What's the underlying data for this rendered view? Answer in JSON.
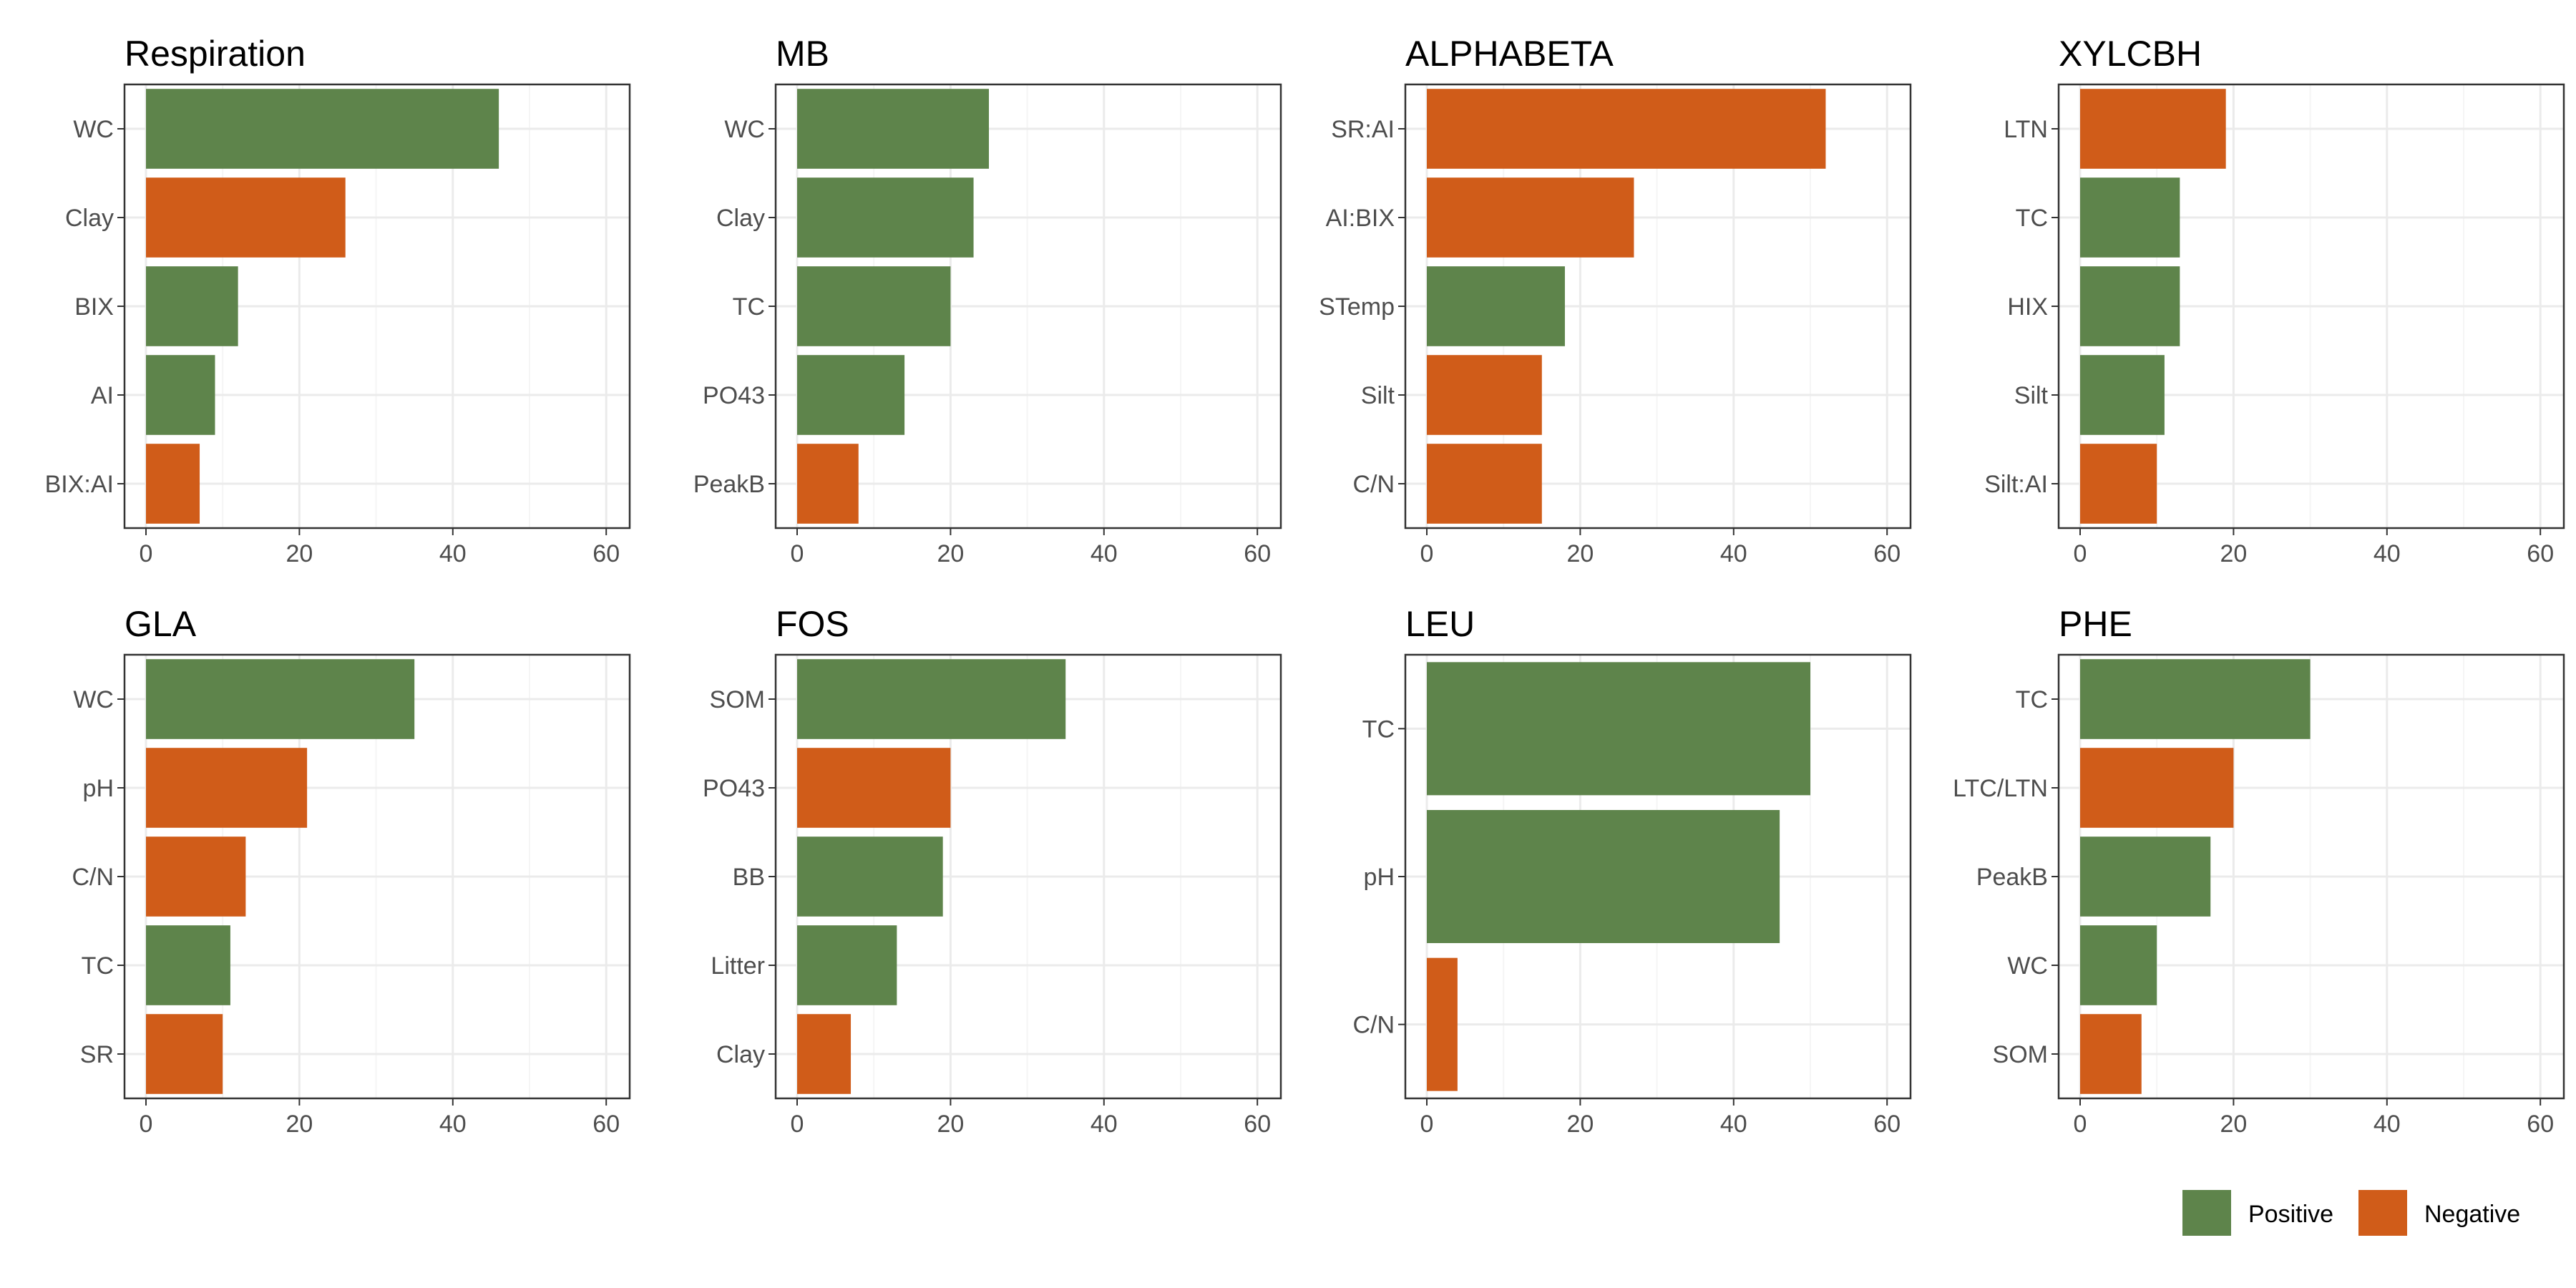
{
  "colors": {
    "positive": "#5e844b",
    "negative": "#d05c19",
    "panel_border": "#333333",
    "grid_major": "#ebebeb",
    "grid_minor": "#f5f5f5",
    "tick_text": "#4d4d4d"
  },
  "legend": {
    "placement": "bottom-right",
    "items": [
      {
        "key": "positive",
        "label": "Positive"
      },
      {
        "key": "negative",
        "label": "Negative"
      }
    ]
  },
  "chart_data": [
    {
      "type": "bar",
      "orientation": "horizontal",
      "title": "Respiration",
      "xlim": [
        0,
        60
      ],
      "xticks": [
        0,
        20,
        40,
        60
      ],
      "categories": [
        "WC",
        "Clay",
        "BIX",
        "AI",
        "BIX:AI"
      ],
      "values": [
        46,
        26,
        12,
        9,
        7
      ],
      "signs": [
        "Positive",
        "Negative",
        "Positive",
        "Positive",
        "Negative"
      ]
    },
    {
      "type": "bar",
      "orientation": "horizontal",
      "title": "MB",
      "xlim": [
        0,
        60
      ],
      "xticks": [
        0,
        20,
        40,
        60
      ],
      "categories": [
        "WC",
        "Clay",
        "TC",
        "PO43",
        "PeakB"
      ],
      "values": [
        25,
        23,
        20,
        14,
        8
      ],
      "signs": [
        "Positive",
        "Positive",
        "Positive",
        "Positive",
        "Negative"
      ]
    },
    {
      "type": "bar",
      "orientation": "horizontal",
      "title": "ALPHABETA",
      "xlim": [
        0,
        60
      ],
      "xticks": [
        0,
        20,
        40,
        60
      ],
      "categories": [
        "SR:AI",
        "AI:BIX",
        "STemp",
        "Silt",
        "C/N"
      ],
      "values": [
        52,
        27,
        18,
        15,
        15
      ],
      "signs": [
        "Negative",
        "Negative",
        "Positive",
        "Negative",
        "Negative"
      ]
    },
    {
      "type": "bar",
      "orientation": "horizontal",
      "title": "XYLCBH",
      "xlim": [
        0,
        60
      ],
      "xticks": [
        0,
        20,
        40,
        60
      ],
      "categories": [
        "LTN",
        "TC",
        "HIX",
        "Silt",
        "Silt:AI"
      ],
      "values": [
        19,
        13,
        13,
        11,
        10
      ],
      "signs": [
        "Negative",
        "Positive",
        "Positive",
        "Positive",
        "Negative"
      ]
    },
    {
      "type": "bar",
      "orientation": "horizontal",
      "title": "GLA",
      "xlim": [
        0,
        60
      ],
      "xticks": [
        0,
        20,
        40,
        60
      ],
      "categories": [
        "WC",
        "pH",
        "C/N",
        "TC",
        "SR"
      ],
      "values": [
        35,
        21,
        13,
        11,
        10
      ],
      "signs": [
        "Positive",
        "Negative",
        "Negative",
        "Positive",
        "Negative"
      ]
    },
    {
      "type": "bar",
      "orientation": "horizontal",
      "title": "FOS",
      "xlim": [
        0,
        60
      ],
      "xticks": [
        0,
        20,
        40,
        60
      ],
      "categories": [
        "SOM",
        "PO43",
        "BB",
        "Litter",
        "Clay"
      ],
      "values": [
        35,
        20,
        19,
        13,
        7
      ],
      "signs": [
        "Positive",
        "Negative",
        "Positive",
        "Positive",
        "Negative"
      ]
    },
    {
      "type": "bar",
      "orientation": "horizontal",
      "title": "LEU",
      "xlim": [
        0,
        60
      ],
      "xticks": [
        0,
        20,
        40,
        60
      ],
      "categories": [
        "TC",
        "pH",
        "C/N"
      ],
      "values": [
        50,
        46,
        4
      ],
      "signs": [
        "Positive",
        "Positive",
        "Negative"
      ]
    },
    {
      "type": "bar",
      "orientation": "horizontal",
      "title": "PHE",
      "xlim": [
        0,
        60
      ],
      "xticks": [
        0,
        20,
        40,
        60
      ],
      "categories": [
        "TC",
        "LTC/LTN",
        "PeakB",
        "WC",
        "SOM"
      ],
      "values": [
        30,
        20,
        17,
        10,
        8
      ],
      "signs": [
        "Positive",
        "Negative",
        "Positive",
        "Positive",
        "Negative"
      ]
    }
  ]
}
